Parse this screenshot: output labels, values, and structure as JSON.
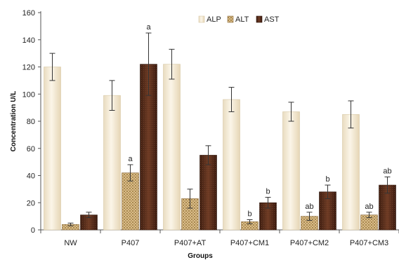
{
  "chart_data": {
    "type": "bar",
    "title": "",
    "xlabel": "Groups",
    "ylabel": "Concentration U/L",
    "ylim": [
      0,
      160
    ],
    "yticks": [
      0,
      20,
      40,
      60,
      80,
      100,
      120,
      140,
      160
    ],
    "categories": [
      "NW",
      "P407",
      "P407+AT",
      "P407+CM1",
      "P407+CM2",
      "P407+CM3"
    ],
    "legend_position": "top-center",
    "grid": false,
    "series": [
      {
        "name": "ALP",
        "pattern": "light-cream",
        "color": "#f6ecd8",
        "values": [
          120,
          99,
          122,
          96,
          87,
          85
        ],
        "errors": [
          10,
          11,
          11,
          9,
          7,
          10
        ],
        "annotations": [
          "",
          "",
          "",
          "",
          "",
          ""
        ]
      },
      {
        "name": "ALT",
        "pattern": "tan-weave",
        "color": "#c8a86a",
        "values": [
          4,
          42,
          23,
          6,
          10,
          11
        ],
        "errors": [
          1,
          6,
          7,
          1.5,
          3,
          2
        ],
        "annotations": [
          "",
          "a",
          "",
          "b",
          "ab",
          "ab"
        ]
      },
      {
        "name": "AST",
        "pattern": "dark-brown",
        "color": "#5a2f1e",
        "values": [
          11,
          122,
          55,
          20,
          28,
          33
        ],
        "errors": [
          2,
          23,
          7,
          4,
          5,
          6
        ],
        "annotations": [
          "",
          "a",
          "",
          "b",
          "b",
          "ab"
        ]
      }
    ]
  }
}
